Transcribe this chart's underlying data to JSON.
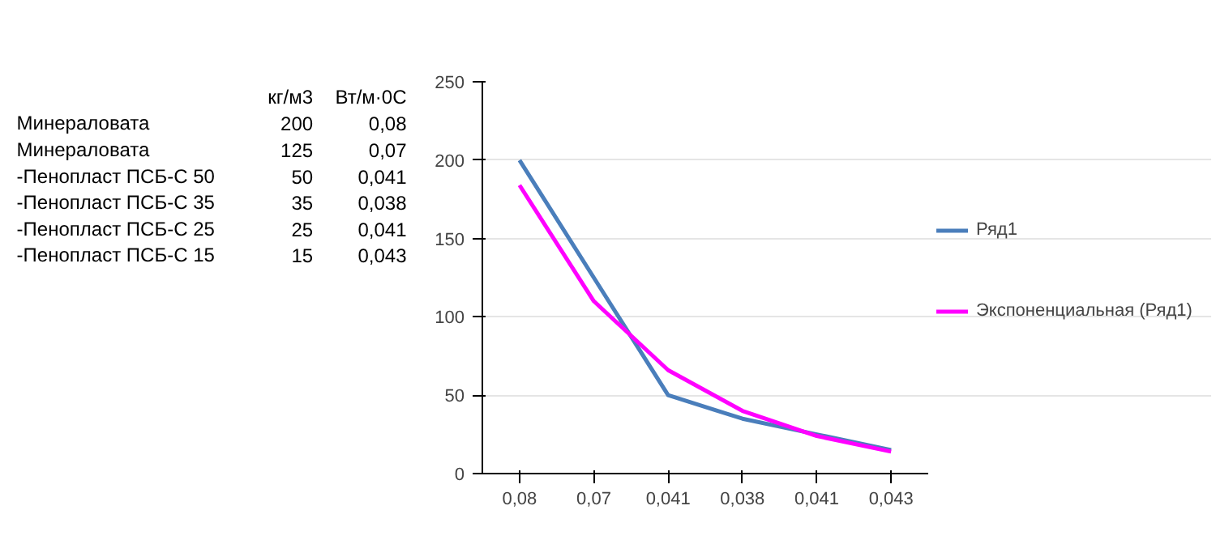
{
  "chart_data": {
    "type": "line",
    "categories": [
      "0,08",
      "0,07",
      "0,041",
      "0,038",
      "0,041",
      "0,043"
    ],
    "series": [
      {
        "name": "Ряд1",
        "color": "#4a7ebb",
        "values": [
          200,
          125,
          50,
          35,
          25,
          15
        ]
      },
      {
        "name": "Экспоненциальная (Ряд1)",
        "color": "#ff00ff",
        "values": [
          184,
          110,
          66,
          40,
          24,
          14
        ]
      }
    ],
    "ylim": [
      0,
      250
    ],
    "yticks": [
      0,
      50,
      100,
      150,
      200,
      250
    ],
    "grid": "y",
    "legend": "right",
    "marker": "none",
    "line_style": "solid",
    "annotations": [
      "кг/м3",
      "Вт/м·0С",
      "Минераловата",
      "200",
      "0,08",
      "Минераловата",
      "125",
      "0,07",
      "-Пенопласт ПСБ-С 50",
      "50",
      "0,041",
      "-Пенопласт ПСБ-С 35",
      "35",
      "0,038",
      "-Пенопласт ПСБ-С 25",
      "25",
      "0,041",
      "-Пенопласт ПСБ-С 15",
      "15",
      "0,043"
    ]
  }
}
